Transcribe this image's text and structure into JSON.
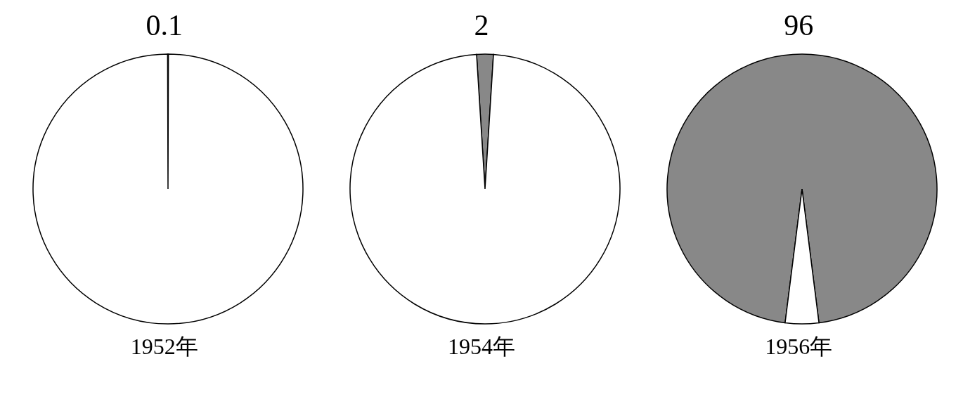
{
  "chart_data": [
    {
      "type": "pie",
      "title": "1952年",
      "categories": [
        null,
        null
      ],
      "values": [
        0.1,
        99.9
      ],
      "colors": [
        "#888888",
        "#ffffff"
      ],
      "value_labels": [
        "0.1",
        null
      ]
    },
    {
      "type": "pie",
      "title": "1954年",
      "categories": [
        null,
        null
      ],
      "values": [
        2,
        98
      ],
      "colors": [
        "#888888",
        "#ffffff"
      ],
      "value_labels": [
        "2",
        null
      ]
    },
    {
      "type": "pie",
      "title": "1956年",
      "categories": [
        null,
        null
      ],
      "values": [
        96,
        4
      ],
      "colors": [
        "#888888",
        "#ffffff"
      ],
      "value_labels": [
        "96",
        null
      ]
    }
  ]
}
